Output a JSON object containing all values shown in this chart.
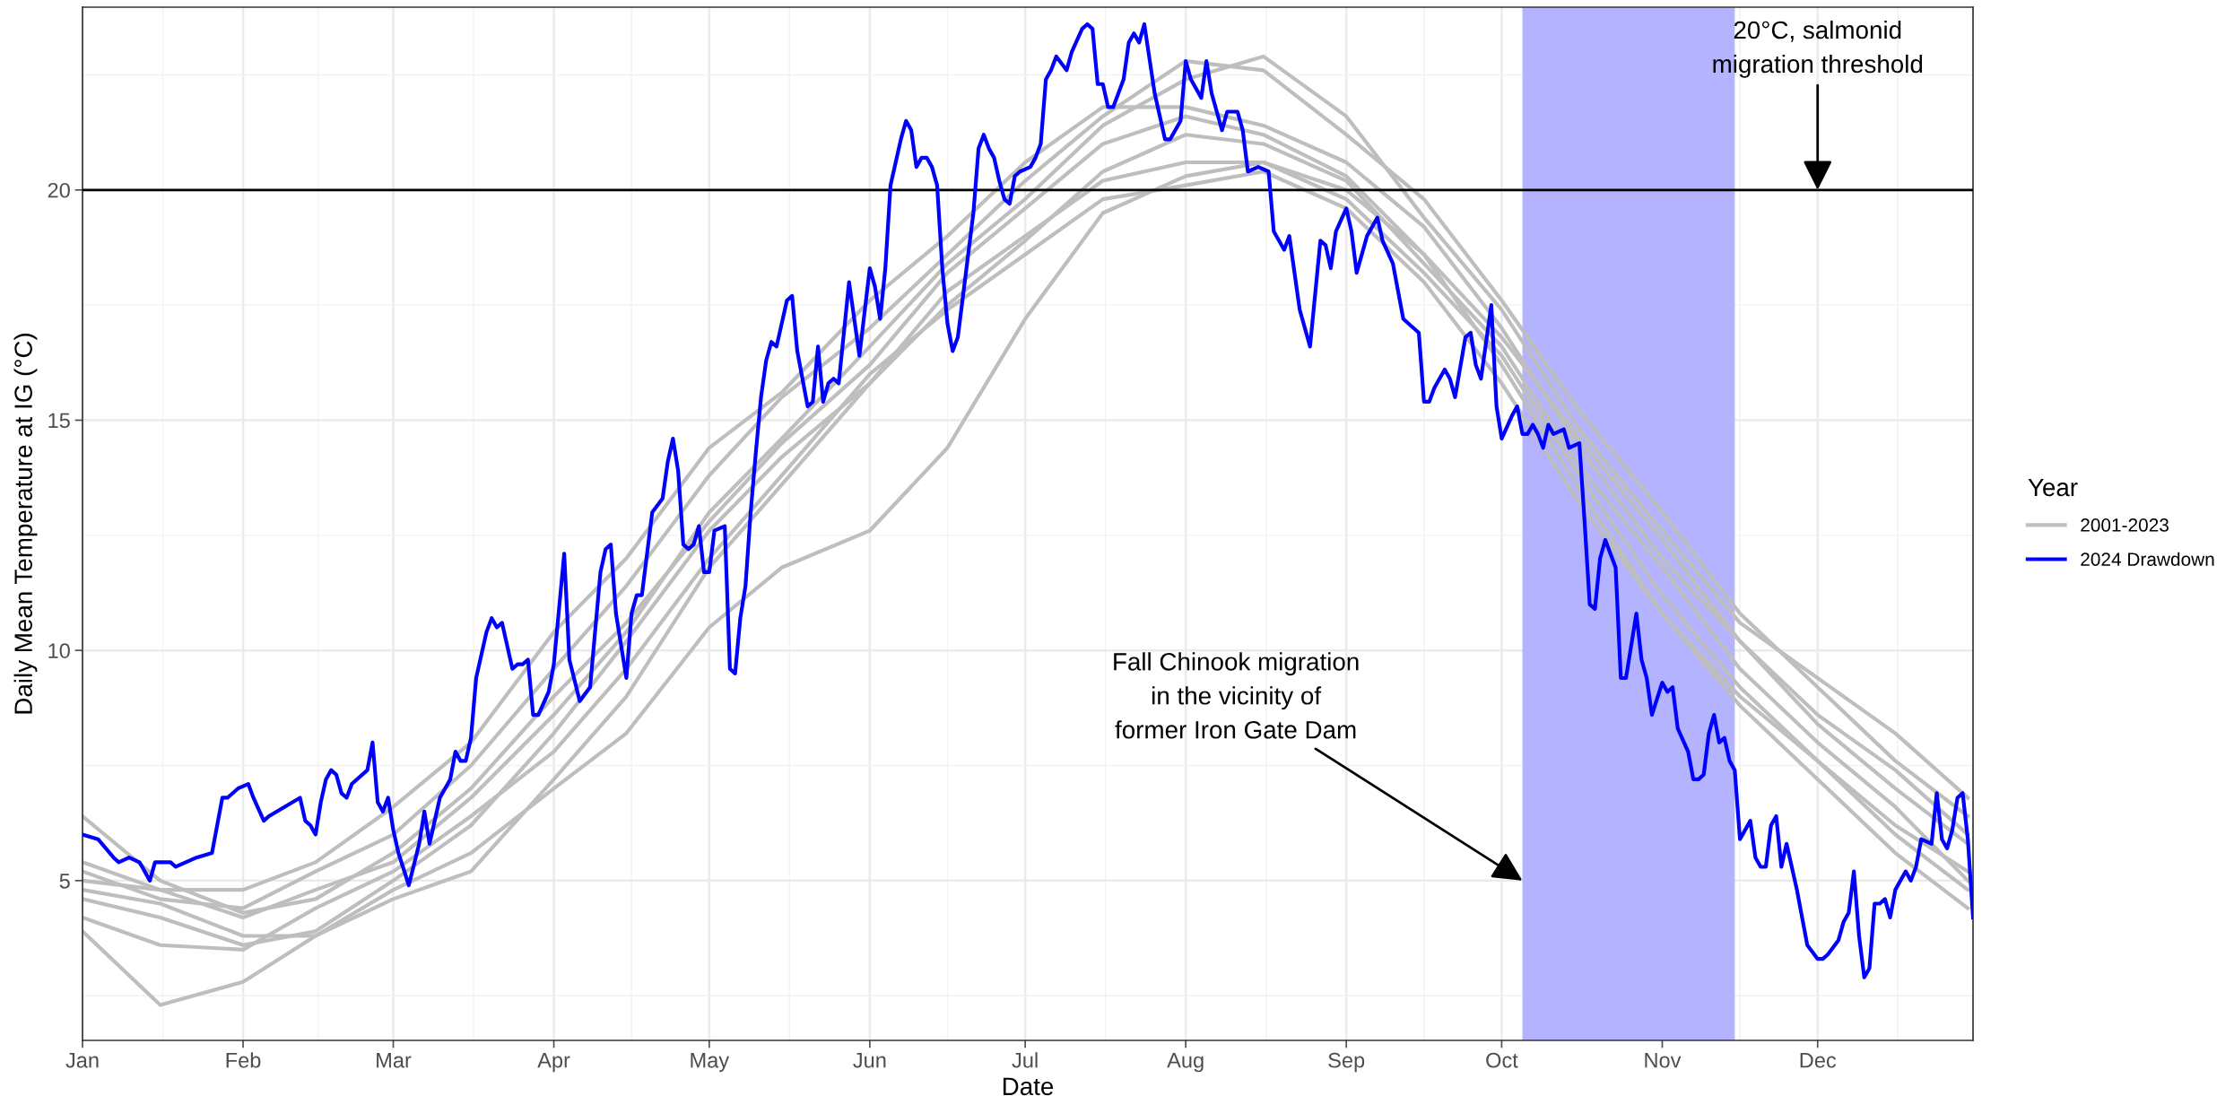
{
  "chart_data": {
    "type": "line",
    "xlabel": "Date",
    "ylabel": "Daily Mean Temperature at IG (°C)",
    "legend_title": "Year",
    "legend": "right",
    "grid": true,
    "line_style": "solid",
    "marker": "none",
    "xlim": [
      "2024-01-01",
      "2024-12-31"
    ],
    "ylim": [
      1.53,
      23.97
    ],
    "xticks": [
      {
        "value": "2024-01-01",
        "label": "Jan"
      },
      {
        "value": "2024-02-01",
        "label": "Feb"
      },
      {
        "value": "2024-03-01",
        "label": "Mar"
      },
      {
        "value": "2024-04-01",
        "label": "Apr"
      },
      {
        "value": "2024-05-01",
        "label": "May"
      },
      {
        "value": "2024-06-01",
        "label": "Jun"
      },
      {
        "value": "2024-07-01",
        "label": "Jul"
      },
      {
        "value": "2024-08-01",
        "label": "Aug"
      },
      {
        "value": "2024-09-01",
        "label": "Sep"
      },
      {
        "value": "2024-10-01",
        "label": "Oct"
      },
      {
        "value": "2024-11-01",
        "label": "Nov"
      },
      {
        "value": "2024-12-01",
        "label": "Dec"
      }
    ],
    "x": [
      "2024-01-01",
      "2024-01-16",
      "2024-02-01",
      "2024-02-15",
      "2024-03-01",
      "2024-03-16",
      "2024-04-01",
      "2024-04-15",
      "2024-05-01",
      "2024-05-15",
      "2024-06-01",
      "2024-06-16",
      "2024-07-01",
      "2024-07-16",
      "2024-08-01",
      "2024-08-16",
      "2024-09-01",
      "2024-09-16",
      "2024-10-01",
      "2024-10-16",
      "2024-11-01",
      "2024-11-16",
      "2024-12-01",
      "2024-12-16",
      "2024-12-30"
    ],
    "yticks": [
      5,
      10,
      15,
      20
    ],
    "ref_lines": [
      {
        "axis": "y",
        "value": 20,
        "color": "#000000",
        "line_style": "solid"
      }
    ],
    "bands": [
      {
        "axis": "x",
        "from": "2024-10-05",
        "to": "2024-11-15",
        "color": "#b3b3ff"
      }
    ],
    "annotations": [
      {
        "text": "20°C, salmonid\nmigration threshold",
        "x": "2024-12-01",
        "y": 20
      },
      {
        "text": "Fall Chinook migration\nin the vicinity of\nformer Iron Gate Dam",
        "x": "2024-10-05",
        "y": 5
      }
    ],
    "series": [
      {
        "name": "2001-2023",
        "color": "#bebebe",
        "values": [
          6.4,
          5.0,
          4.3,
          4.6,
          5.6,
          7.0,
          9.0,
          10.6,
          12.8,
          14.5,
          16.2,
          18.2,
          19.6,
          21.0,
          21.6,
          21.2,
          20.3,
          18.6,
          16.8,
          14.6,
          12.4,
          10.2,
          8.6,
          7.4,
          6.0
        ]
      },
      {
        "color": "#bebebe",
        "values": [
          3.9,
          2.3,
          2.8,
          3.8,
          4.6,
          5.2,
          7.2,
          9.0,
          11.8,
          13.6,
          15.8,
          17.5,
          18.9,
          20.4,
          21.2,
          21.0,
          20.2,
          18.4,
          16.6,
          14.0,
          11.8,
          9.6,
          8.0,
          6.6,
          5.0
        ]
      },
      {
        "color": "#bebebe",
        "values": [
          4.8,
          4.5,
          3.8,
          3.8,
          4.8,
          5.6,
          7.0,
          8.2,
          10.5,
          11.8,
          12.6,
          14.4,
          17.2,
          19.5,
          20.3,
          20.6,
          20.0,
          18.6,
          16.2,
          13.5,
          10.8,
          9.0,
          7.6,
          6.2,
          5.2
        ]
      },
      {
        "color": "#bebebe",
        "values": [
          5.2,
          4.6,
          4.4,
          5.2,
          6.0,
          7.5,
          9.6,
          11.4,
          13.8,
          15.5,
          17.0,
          18.6,
          20.2,
          21.6,
          22.8,
          22.6,
          21.2,
          19.8,
          17.6,
          15.2,
          13.0,
          10.8,
          9.2,
          7.6,
          6.4
        ]
      },
      {
        "color": "#bebebe",
        "values": [
          4.6,
          4.2,
          3.6,
          3.9,
          5.0,
          6.2,
          8.2,
          10.2,
          12.6,
          14.2,
          15.8,
          17.8,
          19.0,
          20.2,
          20.6,
          20.6,
          19.8,
          18.2,
          16.4,
          13.8,
          11.2,
          9.2,
          7.6,
          6.0,
          4.8
        ]
      },
      {
        "color": "#bebebe",
        "values": [
          5.0,
          4.8,
          4.2,
          4.8,
          5.4,
          6.8,
          8.6,
          10.4,
          13.0,
          14.6,
          16.6,
          18.4,
          19.8,
          21.4,
          22.4,
          22.9,
          21.6,
          19.4,
          17.4,
          14.8,
          12.6,
          10.6,
          9.4,
          8.2,
          6.8
        ]
      },
      {
        "color": "#bebebe",
        "values": [
          4.2,
          3.6,
          3.5,
          4.4,
          5.2,
          6.4,
          7.8,
          9.6,
          12.0,
          13.8,
          16.0,
          17.4,
          18.6,
          19.8,
          20.1,
          20.4,
          19.6,
          18.0,
          15.8,
          13.2,
          10.8,
          8.8,
          7.2,
          5.6,
          4.4
        ]
      },
      {
        "color": "#bebebe",
        "values": [
          5.4,
          4.8,
          4.8,
          5.4,
          6.6,
          8.0,
          10.4,
          12.0,
          14.4,
          15.6,
          17.6,
          19.0,
          20.6,
          21.8,
          21.8,
          21.4,
          20.6,
          19.2,
          17.0,
          14.4,
          12.0,
          10.2,
          8.4,
          7.0,
          5.8
        ]
      },
      {
        "name": "2024 Drawdown",
        "color": "#0000ff",
        "x": [
          "2024-01-01",
          "2024-01-04",
          "2024-01-07",
          "2024-01-08",
          "2024-01-10",
          "2024-01-12",
          "2024-01-14",
          "2024-01-15",
          "2024-01-18",
          "2024-01-19",
          "2024-01-23",
          "2024-01-26",
          "2024-01-28",
          "2024-01-29",
          "2024-01-31",
          "2024-02-02",
          "2024-02-03",
          "2024-02-05",
          "2024-02-06",
          "2024-02-12",
          "2024-02-13",
          "2024-02-14",
          "2024-02-15",
          "2024-02-16",
          "2024-02-17",
          "2024-02-18",
          "2024-02-19",
          "2024-02-20",
          "2024-02-21",
          "2024-02-22",
          "2024-02-25",
          "2024-02-26",
          "2024-02-27",
          "2024-02-28",
          "2024-02-29",
          "2024-03-01",
          "2024-03-02",
          "2024-03-04",
          "2024-03-06",
          "2024-03-07",
          "2024-03-08",
          "2024-03-10",
          "2024-03-12",
          "2024-03-13",
          "2024-03-14",
          "2024-03-15",
          "2024-03-16",
          "2024-03-17",
          "2024-03-19",
          "2024-03-20",
          "2024-03-21",
          "2024-03-22",
          "2024-03-24",
          "2024-03-25",
          "2024-03-26",
          "2024-03-27",
          "2024-03-28",
          "2024-03-29",
          "2024-03-31",
          "2024-04-01",
          "2024-04-03",
          "2024-04-04",
          "2024-04-06",
          "2024-04-08",
          "2024-04-10",
          "2024-04-11",
          "2024-04-12",
          "2024-04-13",
          "2024-04-15",
          "2024-04-16",
          "2024-04-17",
          "2024-04-18",
          "2024-04-20",
          "2024-04-22",
          "2024-04-23",
          "2024-04-24",
          "2024-04-25",
          "2024-04-26",
          "2024-04-27",
          "2024-04-28",
          "2024-04-29",
          "2024-04-30",
          "2024-05-01",
          "2024-05-02",
          "2024-05-04",
          "2024-05-05",
          "2024-05-06",
          "2024-05-07",
          "2024-05-08",
          "2024-05-09",
          "2024-05-10",
          "2024-05-11",
          "2024-05-12",
          "2024-05-13",
          "2024-05-14",
          "2024-05-16",
          "2024-05-17",
          "2024-05-18",
          "2024-05-20",
          "2024-05-21",
          "2024-05-22",
          "2024-05-23",
          "2024-05-24",
          "2024-05-25",
          "2024-05-26",
          "2024-05-28",
          "2024-05-30",
          "2024-06-01",
          "2024-06-02",
          "2024-06-03",
          "2024-06-04",
          "2024-06-05",
          "2024-06-07",
          "2024-06-08",
          "2024-06-09",
          "2024-06-10",
          "2024-06-11",
          "2024-06-12",
          "2024-06-13",
          "2024-06-14",
          "2024-06-15",
          "2024-06-16",
          "2024-06-17",
          "2024-06-18",
          "2024-06-19",
          "2024-06-21",
          "2024-06-22",
          "2024-06-23",
          "2024-06-24",
          "2024-06-25",
          "2024-06-26",
          "2024-06-27",
          "2024-06-28",
          "2024-06-29",
          "2024-06-30",
          "2024-07-02",
          "2024-07-03",
          "2024-07-04",
          "2024-07-05",
          "2024-07-06",
          "2024-07-07",
          "2024-07-09",
          "2024-07-10",
          "2024-07-12",
          "2024-07-13",
          "2024-07-14",
          "2024-07-15",
          "2024-07-16",
          "2024-07-17",
          "2024-07-18",
          "2024-07-20",
          "2024-07-21",
          "2024-07-22",
          "2024-07-23",
          "2024-07-24",
          "2024-07-26",
          "2024-07-28",
          "2024-07-29",
          "2024-07-31",
          "2024-08-01",
          "2024-08-02",
          "2024-08-04",
          "2024-08-05",
          "2024-08-06",
          "2024-08-08",
          "2024-08-09",
          "2024-08-11",
          "2024-08-12",
          "2024-08-13",
          "2024-08-15",
          "2024-08-17",
          "2024-08-18",
          "2024-08-20",
          "2024-08-21",
          "2024-08-23",
          "2024-08-25",
          "2024-08-27",
          "2024-08-28",
          "2024-08-29",
          "2024-08-30",
          "2024-09-01",
          "2024-09-02",
          "2024-09-03",
          "2024-09-05",
          "2024-09-07",
          "2024-09-08",
          "2024-09-10",
          "2024-09-12",
          "2024-09-13",
          "2024-09-15",
          "2024-09-16",
          "2024-09-17",
          "2024-09-18",
          "2024-09-20",
          "2024-09-21",
          "2024-09-22",
          "2024-09-24",
          "2024-09-25",
          "2024-09-26",
          "2024-09-27",
          "2024-09-29",
          "2024-09-30",
          "2024-10-01",
          "2024-10-03",
          "2024-10-04",
          "2024-10-05",
          "2024-10-06",
          "2024-10-07",
          "2024-10-08",
          "2024-10-09",
          "2024-10-10",
          "2024-10-11",
          "2024-10-13",
          "2024-10-14",
          "2024-10-16",
          "2024-10-17",
          "2024-10-18",
          "2024-10-19",
          "2024-10-20",
          "2024-10-21",
          "2024-10-23",
          "2024-10-24",
          "2024-10-25",
          "2024-10-27",
          "2024-10-28",
          "2024-10-29",
          "2024-10-30",
          "2024-11-01",
          "2024-11-02",
          "2024-11-03",
          "2024-11-04",
          "2024-11-06",
          "2024-11-07",
          "2024-11-08",
          "2024-11-09",
          "2024-11-10",
          "2024-11-11",
          "2024-11-12",
          "2024-11-13",
          "2024-11-14",
          "2024-11-15",
          "2024-11-16",
          "2024-11-18",
          "2024-11-19",
          "2024-11-20",
          "2024-11-21",
          "2024-11-22",
          "2024-11-23",
          "2024-11-24",
          "2024-11-25",
          "2024-11-27",
          "2024-11-29",
          "2024-12-01",
          "2024-12-02",
          "2024-12-03",
          "2024-12-05",
          "2024-12-06",
          "2024-12-07",
          "2024-12-08",
          "2024-12-09",
          "2024-12-10",
          "2024-12-11",
          "2024-12-12",
          "2024-12-13",
          "2024-12-14",
          "2024-12-15",
          "2024-12-16",
          "2024-12-18",
          "2024-12-19",
          "2024-12-20",
          "2024-12-21",
          "2024-12-23",
          "2024-12-24",
          "2024-12-25",
          "2024-12-26",
          "2024-12-27",
          "2024-12-28",
          "2024-12-29",
          "2024-12-30",
          "2024-12-31"
        ],
        "values": [
          6.0,
          5.9,
          5.5,
          5.4,
          5.5,
          5.4,
          5.0,
          5.4,
          5.4,
          5.3,
          5.5,
          5.6,
          6.8,
          6.8,
          7.0,
          7.1,
          6.8,
          6.3,
          6.4,
          6.8,
          6.3,
          6.2,
          6.0,
          6.7,
          7.2,
          7.4,
          7.3,
          6.9,
          6.8,
          7.1,
          7.4,
          8.0,
          6.7,
          6.5,
          6.8,
          6.1,
          5.6,
          4.9,
          5.8,
          6.5,
          5.8,
          6.8,
          7.2,
          7.8,
          7.6,
          7.6,
          8.1,
          9.4,
          10.4,
          10.7,
          10.5,
          10.6,
          9.6,
          9.7,
          9.7,
          9.8,
          8.6,
          8.6,
          9.1,
          9.7,
          12.1,
          9.8,
          8.9,
          9.2,
          11.7,
          12.2,
          12.3,
          10.8,
          9.4,
          10.8,
          11.2,
          11.2,
          13.0,
          13.3,
          14.1,
          14.6,
          13.9,
          12.3,
          12.2,
          12.3,
          12.7,
          11.7,
          11.7,
          12.6,
          12.7,
          9.6,
          9.5,
          10.7,
          11.4,
          13.0,
          14.3,
          15.5,
          16.3,
          16.7,
          16.6,
          17.6,
          17.7,
          16.5,
          15.3,
          15.4,
          16.6,
          15.4,
          15.8,
          15.9,
          15.8,
          18.0,
          16.4,
          18.3,
          17.9,
          17.2,
          18.3,
          20.1,
          21.1,
          21.5,
          21.3,
          20.5,
          20.7,
          20.7,
          20.5,
          20.1,
          18.3,
          17.1,
          16.5,
          16.8,
          17.7,
          19.5,
          20.9,
          21.2,
          20.9,
          20.7,
          20.2,
          19.8,
          19.7,
          20.3,
          20.4,
          20.5,
          20.7,
          21.0,
          22.4,
          22.6,
          22.9,
          22.6,
          23.0,
          23.5,
          23.6,
          23.5,
          22.3,
          22.3,
          21.8,
          21.8,
          22.4,
          23.2,
          23.4,
          23.2,
          23.6,
          22.1,
          21.1,
          21.1,
          21.5,
          22.8,
          22.4,
          22.0,
          22.8,
          22.1,
          21.3,
          21.7,
          21.7,
          21.3,
          20.4,
          20.5,
          20.4,
          19.1,
          18.7,
          19.0,
          17.4,
          16.6,
          18.9,
          18.8,
          18.3,
          19.1,
          19.6,
          19.1,
          18.2,
          19.0,
          19.4,
          18.9,
          18.4,
          17.2,
          17.1,
          16.9,
          15.4,
          15.4,
          15.7,
          16.1,
          15.9,
          15.5,
          16.8,
          16.9,
          16.2,
          15.9,
          17.5,
          15.3,
          14.6,
          15.1,
          15.3,
          14.7,
          14.7,
          14.9,
          14.7,
          14.4,
          14.9,
          14.7,
          14.8,
          14.4,
          14.5,
          12.8,
          11.0,
          10.9,
          12.0,
          12.4,
          11.8,
          9.4,
          9.4,
          10.8,
          9.8,
          9.4,
          8.6,
          9.3,
          9.1,
          9.2,
          8.3,
          7.8,
          7.2,
          7.2,
          7.3,
          8.2,
          8.6,
          8.0,
          8.1,
          7.6,
          7.4,
          5.9,
          6.3,
          5.5,
          5.3,
          5.3,
          6.2,
          6.4,
          5.3,
          5.8,
          4.8,
          3.6,
          3.3,
          3.3,
          3.4,
          3.7,
          4.1,
          4.3,
          5.2,
          3.8,
          2.9,
          3.1,
          4.5,
          4.5,
          4.6,
          4.2,
          4.8,
          5.2,
          5.0,
          5.3,
          5.9,
          5.8,
          6.9,
          5.9,
          5.7,
          6.1,
          6.8,
          6.9,
          5.9,
          4.2
        ]
      }
    ]
  }
}
